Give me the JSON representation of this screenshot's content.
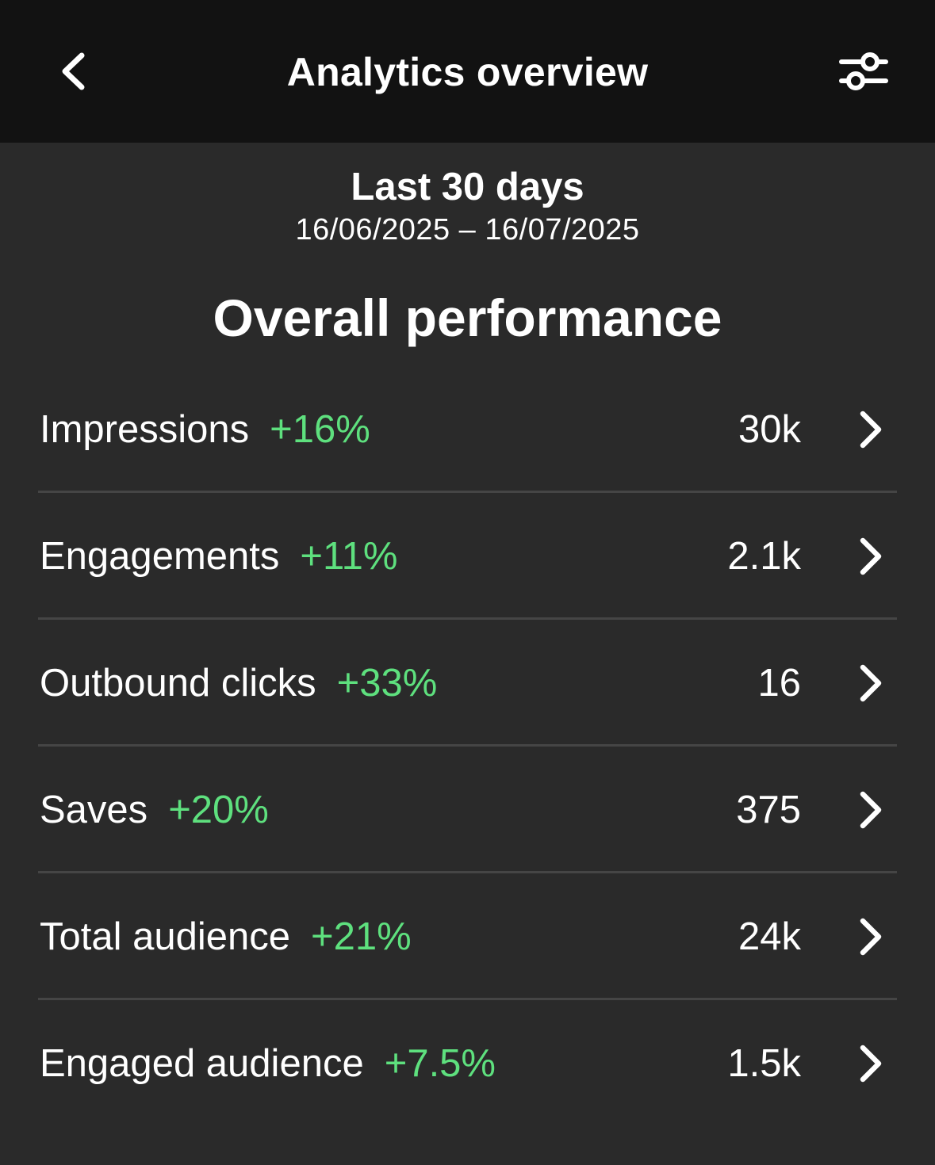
{
  "header": {
    "title": "Analytics overview",
    "back_icon": "chevron-left-icon",
    "filter_icon": "sliders-icon"
  },
  "date_range": {
    "label": "Last 30 days",
    "dates": "16/06/2025 – 16/07/2025"
  },
  "section_title": "Overall performance",
  "colors": {
    "header_bg": "#121212",
    "page_bg": "#2a2a2a",
    "positive_change": "#5ee07e",
    "divider": "#454545"
  },
  "metrics": [
    {
      "label": "Impressions",
      "change": "+16%",
      "value": "30k"
    },
    {
      "label": "Engagements",
      "change": "+11%",
      "value": "2.1k"
    },
    {
      "label": "Outbound clicks",
      "change": "+33%",
      "value": "16"
    },
    {
      "label": "Saves",
      "change": "+20%",
      "value": "375"
    },
    {
      "label": "Total audience",
      "change": "+21%",
      "value": "24k"
    },
    {
      "label": "Engaged audience",
      "change": "+7.5%",
      "value": "1.5k"
    }
  ]
}
